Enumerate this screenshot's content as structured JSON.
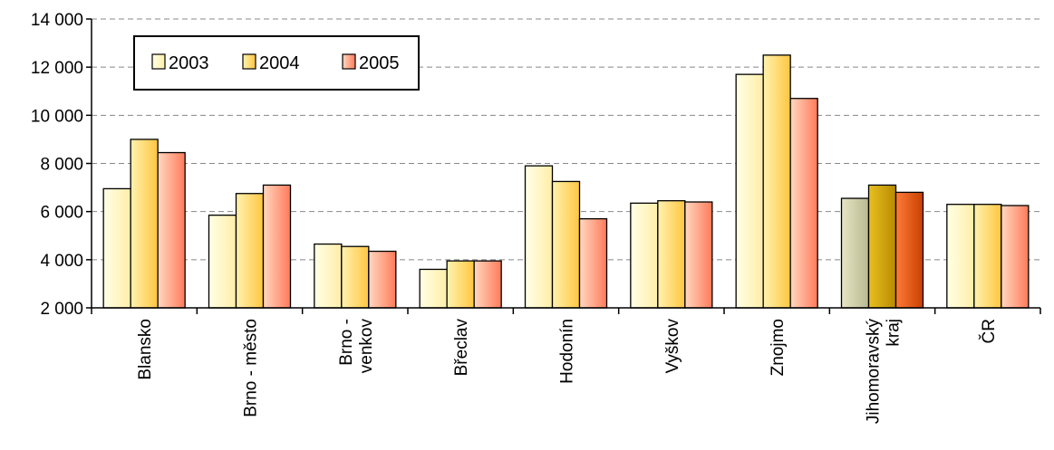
{
  "chart_data": {
    "type": "bar",
    "categories": [
      [
        "Blansko"
      ],
      [
        "Brno - město"
      ],
      [
        "Brno -",
        "venkov"
      ],
      [
        "Břeclav"
      ],
      [
        "Hodonín"
      ],
      [
        "Vyškov"
      ],
      [
        "Znojmo"
      ],
      [
        "Jihomoravský",
        "kraj"
      ],
      [
        "ČR"
      ]
    ],
    "series": [
      {
        "name": "2003",
        "values": [
          6950,
          5850,
          4650,
          3600,
          7900,
          6350,
          11700,
          6550,
          6300
        ]
      },
      {
        "name": "2004",
        "values": [
          9000,
          6750,
          4550,
          3950,
          7250,
          6450,
          12500,
          7100,
          6300
        ]
      },
      {
        "name": "2005",
        "values": [
          8450,
          7100,
          4350,
          3950,
          5700,
          6400,
          10700,
          6800,
          6250
        ]
      }
    ],
    "ylim": [
      2000,
      14000
    ],
    "yticks": [
      2000,
      4000,
      6000,
      8000,
      10000,
      12000,
      14000
    ],
    "ytick_labels": [
      "2 000",
      "4 000",
      "6 000",
      "8 000",
      "10 000",
      "12 000",
      "14 000"
    ],
    "grid": "horizontal dashed",
    "legend_position": "top-left",
    "colors": {
      "2003": "#ffffd9",
      "2004": "#ffd24d",
      "2005": "#ff8060",
      "highlight_2003": "#c8c8a0",
      "highlight_2004": "#d4a200",
      "highlight_2005": "#e05000"
    },
    "highlight_category_index": 7
  }
}
